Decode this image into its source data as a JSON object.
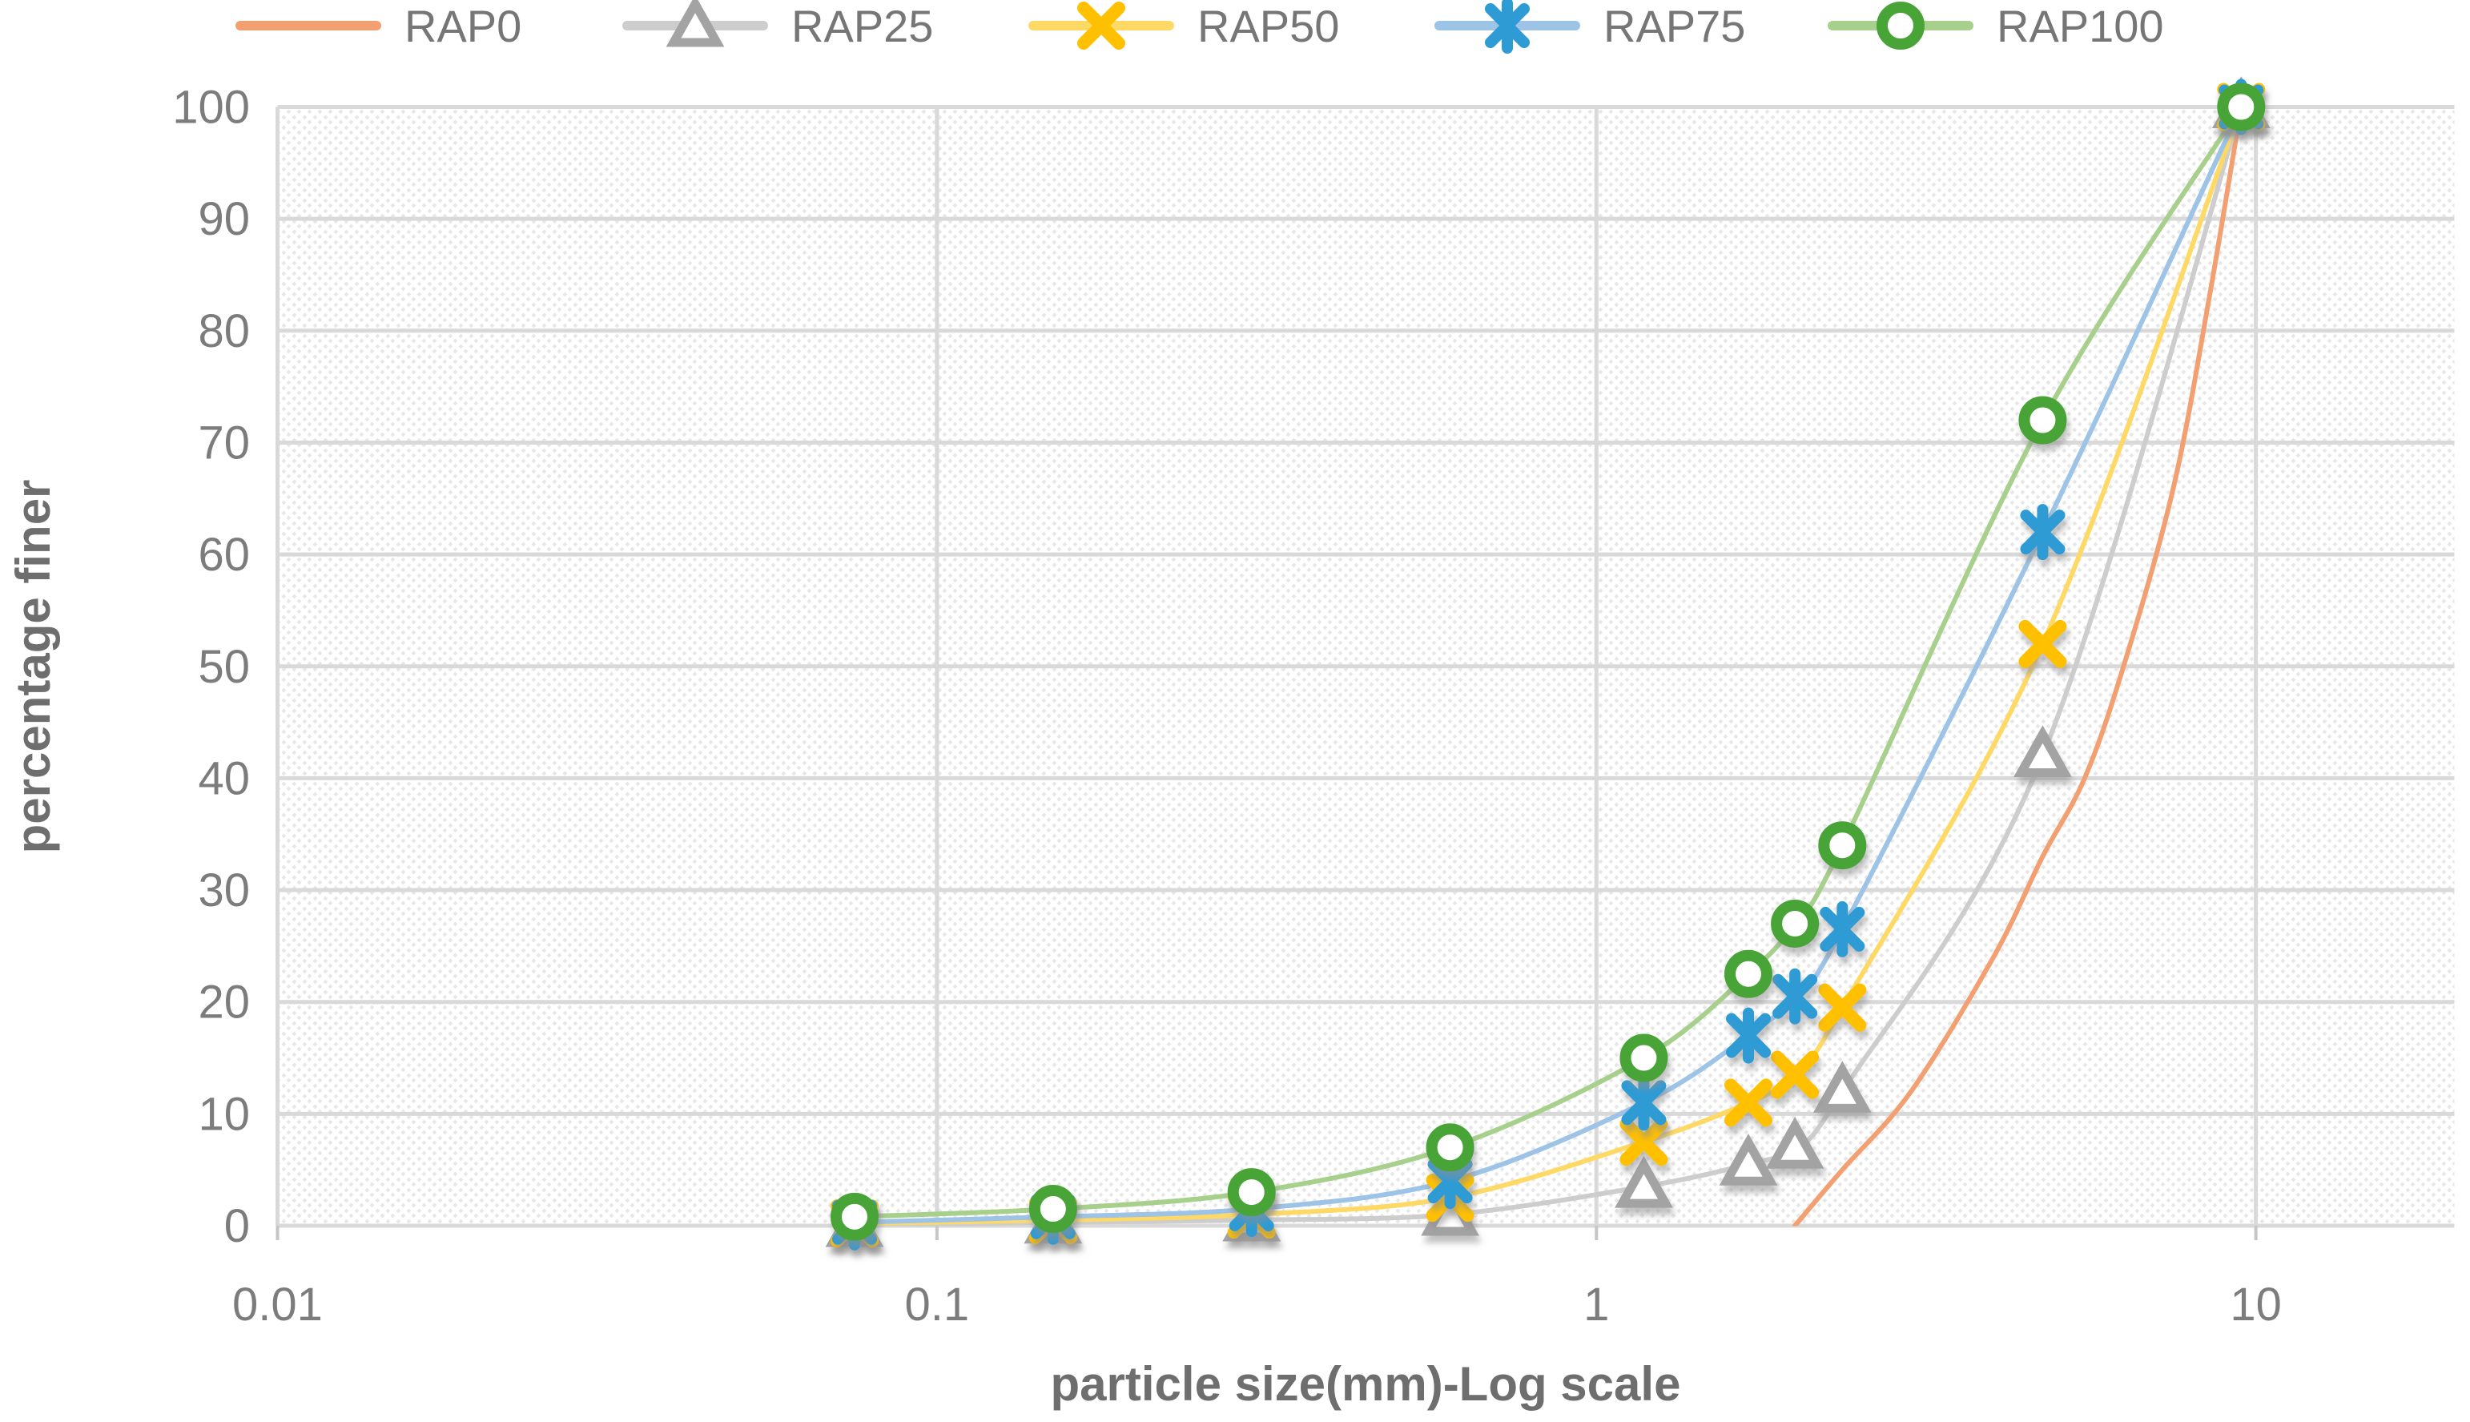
{
  "figure": {
    "kind": "particle size distribution (gradation) chart",
    "background": "#ffffff",
    "text_color": "#7c7c7c",
    "grid_color": "#d9d9d9",
    "hatch_color": "#e7e7e7"
  },
  "chart_data": {
    "type": "line",
    "title": "",
    "xlabel": "particle size(mm)-Log scale",
    "ylabel": "percentage finer",
    "x_scale": "log",
    "xlim": [
      0.01,
      20
    ],
    "ylim": [
      0,
      100
    ],
    "x_tick_values": [
      0.01,
      0.1,
      1,
      10
    ],
    "x_tick_labels": [
      "0.01",
      "0.1",
      "1",
      "10"
    ],
    "y_tick_values": [
      0,
      10,
      20,
      30,
      40,
      50,
      60,
      70,
      80,
      90,
      100
    ],
    "grid": "horizontal gridlines every 10 units, vertical gridlines at log decades, diagonally hatched plot background",
    "legend_position": "top",
    "sieve_sizes_mm": [
      0.075,
      0.15,
      0.3,
      0.6,
      1.18,
      1.7,
      2.0,
      2.36,
      4.75,
      9.5
    ],
    "series": [
      {
        "name": "RAP0",
        "marker": "none",
        "line_color": "#F2A071",
        "marker_color": "#F2A071",
        "x": [
          2.0,
          2.36,
          3.0,
          4.0,
          4.75,
          5.5,
          6.3,
          7.5,
          8.5,
          9.5
        ],
        "values": [
          0,
          5,
          12,
          24,
          33,
          40,
          50,
          66,
          83,
          100
        ]
      },
      {
        "name": "RAP25",
        "marker": "triangle-open",
        "line_color": "#CDCDCD",
        "marker_color": "#A3A3A3",
        "x": [
          0.075,
          0.15,
          0.3,
          0.6,
          1.18,
          1.7,
          2.0,
          2.36,
          4.75,
          9.5
        ],
        "values": [
          0,
          0.3,
          0.5,
          1,
          3.5,
          5.5,
          7,
          12,
          42,
          100
        ]
      },
      {
        "name": "RAP50",
        "marker": "x",
        "line_color": "#FFD966",
        "marker_color": "#FFC000",
        "x": [
          0.075,
          0.15,
          0.3,
          0.6,
          1.18,
          1.7,
          2.0,
          2.36,
          4.75,
          9.5
        ],
        "values": [
          0.2,
          0.5,
          1,
          2.5,
          7.5,
          11,
          13.5,
          19.5,
          52,
          100
        ]
      },
      {
        "name": "RAP75",
        "marker": "asterisk",
        "line_color": "#9DC3E6",
        "marker_color": "#2E9BD5",
        "x": [
          0.075,
          0.15,
          0.3,
          0.6,
          1.18,
          1.7,
          2.0,
          2.36,
          4.75,
          9.5
        ],
        "values": [
          0.3,
          0.8,
          1.5,
          4,
          11,
          17,
          20.5,
          26.5,
          62,
          100
        ]
      },
      {
        "name": "RAP100",
        "marker": "circle-open",
        "line_color": "#A8D08D",
        "marker_color": "#48A437",
        "x": [
          0.075,
          0.15,
          0.3,
          0.6,
          1.18,
          1.7,
          2.0,
          2.36,
          4.75,
          9.5
        ],
        "values": [
          0.8,
          1.5,
          3,
          7,
          15,
          22.5,
          27,
          34,
          72,
          100
        ]
      }
    ]
  }
}
